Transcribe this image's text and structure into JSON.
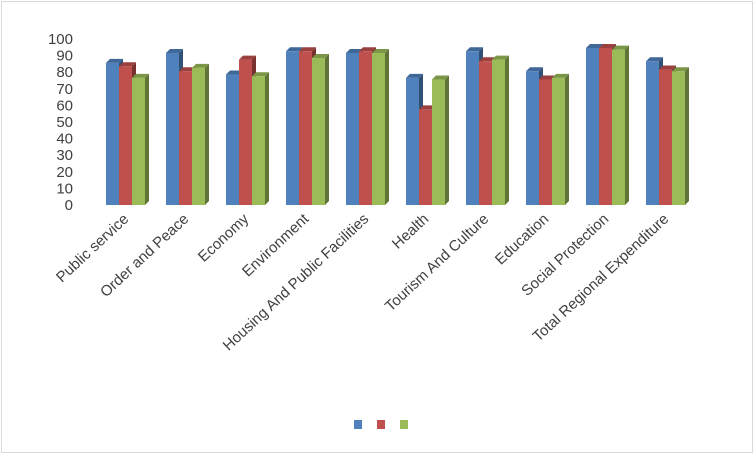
{
  "chart_data": {
    "type": "bar",
    "style": "3d-clustered-column",
    "categories": [
      "Public service",
      "Order and Peace",
      "Economy",
      "Environment",
      "Housing And Public Facilities",
      "Health",
      "Tourism And Culture",
      "Education",
      "Social Protection",
      "Total Regional Expenditure"
    ],
    "series": [
      {
        "color": "#4f81bd",
        "values": [
          88,
          94,
          81,
          95,
          94,
          79,
          95,
          83,
          97,
          89
        ]
      },
      {
        "color": "#c0504d",
        "values": [
          86,
          83,
          90,
          95,
          95,
          60,
          89,
          78,
          97,
          84
        ]
      },
      {
        "color": "#9bbb59",
        "values": [
          79,
          85,
          80,
          91,
          94,
          78,
          90,
          79,
          96,
          83
        ]
      }
    ],
    "y_ticks": [
      "0",
      "10",
      "20",
      "30",
      "40",
      "50",
      "60",
      "70",
      "80",
      "90",
      "100"
    ],
    "ylim": [
      0,
      100
    ],
    "grid": false,
    "legend_position": "bottom"
  }
}
